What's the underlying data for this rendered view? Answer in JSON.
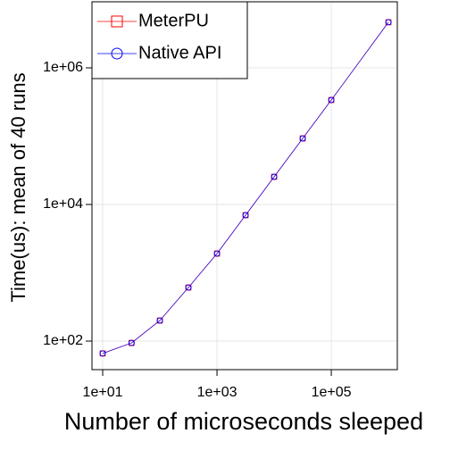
{
  "chart_data": {
    "type": "line",
    "xlabel": "Number of microseconds sleeped",
    "ylabel": "Time(us): mean of 40 runs",
    "x": [
      10,
      32,
      100,
      316,
      1000,
      3162,
      10000,
      31623,
      100000,
      1000000
    ],
    "series": [
      {
        "name": "MeterPU",
        "color": "#ff0000",
        "marker": "square",
        "values": [
          66,
          94,
          200,
          608,
          1910,
          6970,
          25400,
          92700,
          338000,
          4650000
        ]
      },
      {
        "name": "Native API",
        "color": "#0000ff",
        "marker": "circle",
        "values": [
          66,
          94,
          200,
          608,
          1910,
          6970,
          25400,
          92700,
          338000,
          4650000
        ]
      }
    ],
    "xlog": true,
    "ylog": true,
    "xlim": [
      6.49,
      1430000
    ],
    "ylim": [
      38.2,
      9270000
    ],
    "xticks": [
      {
        "value": 10,
        "label": "1e+01"
      },
      {
        "value": 1000,
        "label": "1e+03"
      },
      {
        "value": 100000,
        "label": "1e+05"
      }
    ],
    "yticks": [
      {
        "value": 100,
        "label": "1e+02"
      },
      {
        "value": 10000,
        "label": "1e+04"
      },
      {
        "value": 1000000,
        "label": "1e+06"
      }
    ],
    "grid": true,
    "legend": "upper left"
  }
}
